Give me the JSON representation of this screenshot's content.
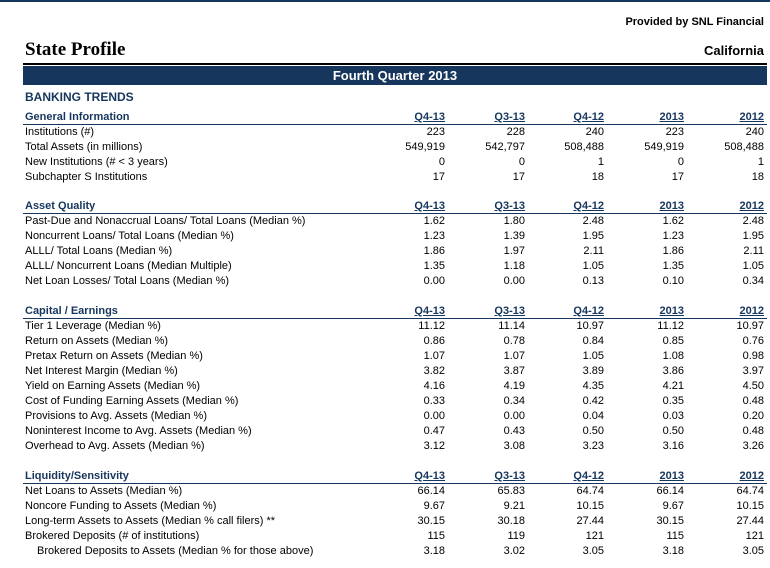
{
  "header": {
    "provider": "Provided by SNL Financial",
    "title": "State Profile",
    "state": "California",
    "banner": "Fourth Quarter 2013",
    "section_title": "BANKING TRENDS"
  },
  "columns": [
    "Q4-13",
    "Q3-13",
    "Q4-12",
    "2013",
    "2012"
  ],
  "sections": [
    {
      "title": "General Information",
      "rows": [
        {
          "label": "Institutions (#)",
          "values": [
            "223",
            "228",
            "240",
            "223",
            "240"
          ]
        },
        {
          "label": "Total Assets (in millions)",
          "values": [
            "549,919",
            "542,797",
            "508,488",
            "549,919",
            "508,488"
          ]
        },
        {
          "label": "New Institutions (# < 3 years)",
          "values": [
            "0",
            "0",
            "1",
            "0",
            "1"
          ]
        },
        {
          "label": "Subchapter S Institutions",
          "values": [
            "17",
            "17",
            "18",
            "17",
            "18"
          ]
        }
      ]
    },
    {
      "title": "Asset Quality",
      "rows": [
        {
          "label": "Past-Due and Nonaccrual Loans/ Total Loans (Median %)",
          "values": [
            "1.62",
            "1.80",
            "2.48",
            "1.62",
            "2.48"
          ]
        },
        {
          "label": "Noncurrent Loans/ Total Loans (Median %)",
          "values": [
            "1.23",
            "1.39",
            "1.95",
            "1.23",
            "1.95"
          ]
        },
        {
          "label": "ALLL/ Total Loans (Median %)",
          "values": [
            "1.86",
            "1.97",
            "2.11",
            "1.86",
            "2.11"
          ]
        },
        {
          "label": "ALLL/ Noncurrent Loans (Median Multiple)",
          "values": [
            "1.35",
            "1.18",
            "1.05",
            "1.35",
            "1.05"
          ]
        },
        {
          "label": "Net Loan Losses/ Total Loans (Median %)",
          "values": [
            "0.00",
            "0.00",
            "0.13",
            "0.10",
            "0.34"
          ]
        }
      ]
    },
    {
      "title": "Capital / Earnings",
      "rows": [
        {
          "label": "Tier 1 Leverage (Median %)",
          "values": [
            "11.12",
            "11.14",
            "10.97",
            "11.12",
            "10.97"
          ]
        },
        {
          "label": "Return on Assets (Median %)",
          "values": [
            "0.86",
            "0.78",
            "0.84",
            "0.85",
            "0.76"
          ]
        },
        {
          "label": "Pretax Return on Assets (Median %)",
          "values": [
            "1.07",
            "1.07",
            "1.05",
            "1.08",
            "0.98"
          ]
        },
        {
          "label": "Net Interest Margin (Median %)",
          "values": [
            "3.82",
            "3.87",
            "3.89",
            "3.86",
            "3.97"
          ]
        },
        {
          "label": "Yield on Earning Assets (Median %)",
          "values": [
            "4.16",
            "4.19",
            "4.35",
            "4.21",
            "4.50"
          ]
        },
        {
          "label": "Cost of Funding Earning Assets (Median %)",
          "values": [
            "0.33",
            "0.34",
            "0.42",
            "0.35",
            "0.48"
          ]
        },
        {
          "label": "Provisions to Avg. Assets (Median %)",
          "values": [
            "0.00",
            "0.00",
            "0.04",
            "0.03",
            "0.20"
          ]
        },
        {
          "label": "Noninterest Income to Avg. Assets (Median %)",
          "values": [
            "0.47",
            "0.43",
            "0.50",
            "0.50",
            "0.48"
          ]
        },
        {
          "label": "Overhead to Avg. Assets (Median %)",
          "values": [
            "3.12",
            "3.08",
            "3.23",
            "3.16",
            "3.26"
          ]
        }
      ]
    },
    {
      "title": "Liquidity/Sensitivity",
      "rows": [
        {
          "label": "Net Loans to Assets (Median %)",
          "values": [
            "66.14",
            "65.83",
            "64.74",
            "66.14",
            "64.74"
          ]
        },
        {
          "label": "Noncore Funding to Assets (Median %)",
          "values": [
            "9.67",
            "9.21",
            "10.15",
            "9.67",
            "10.15"
          ]
        },
        {
          "label": "Long-term Assets to Assets (Median % call filers) **",
          "values": [
            "30.15",
            "30.18",
            "27.44",
            "30.15",
            "27.44"
          ]
        },
        {
          "label": "Brokered Deposits (# of institutions)",
          "values": [
            "115",
            "119",
            "121",
            "115",
            "121"
          ]
        },
        {
          "label": "Brokered Deposits to Assets (Median % for those above)",
          "values": [
            "3.18",
            "3.02",
            "3.05",
            "3.18",
            "3.05"
          ],
          "indent": true
        }
      ]
    }
  ]
}
